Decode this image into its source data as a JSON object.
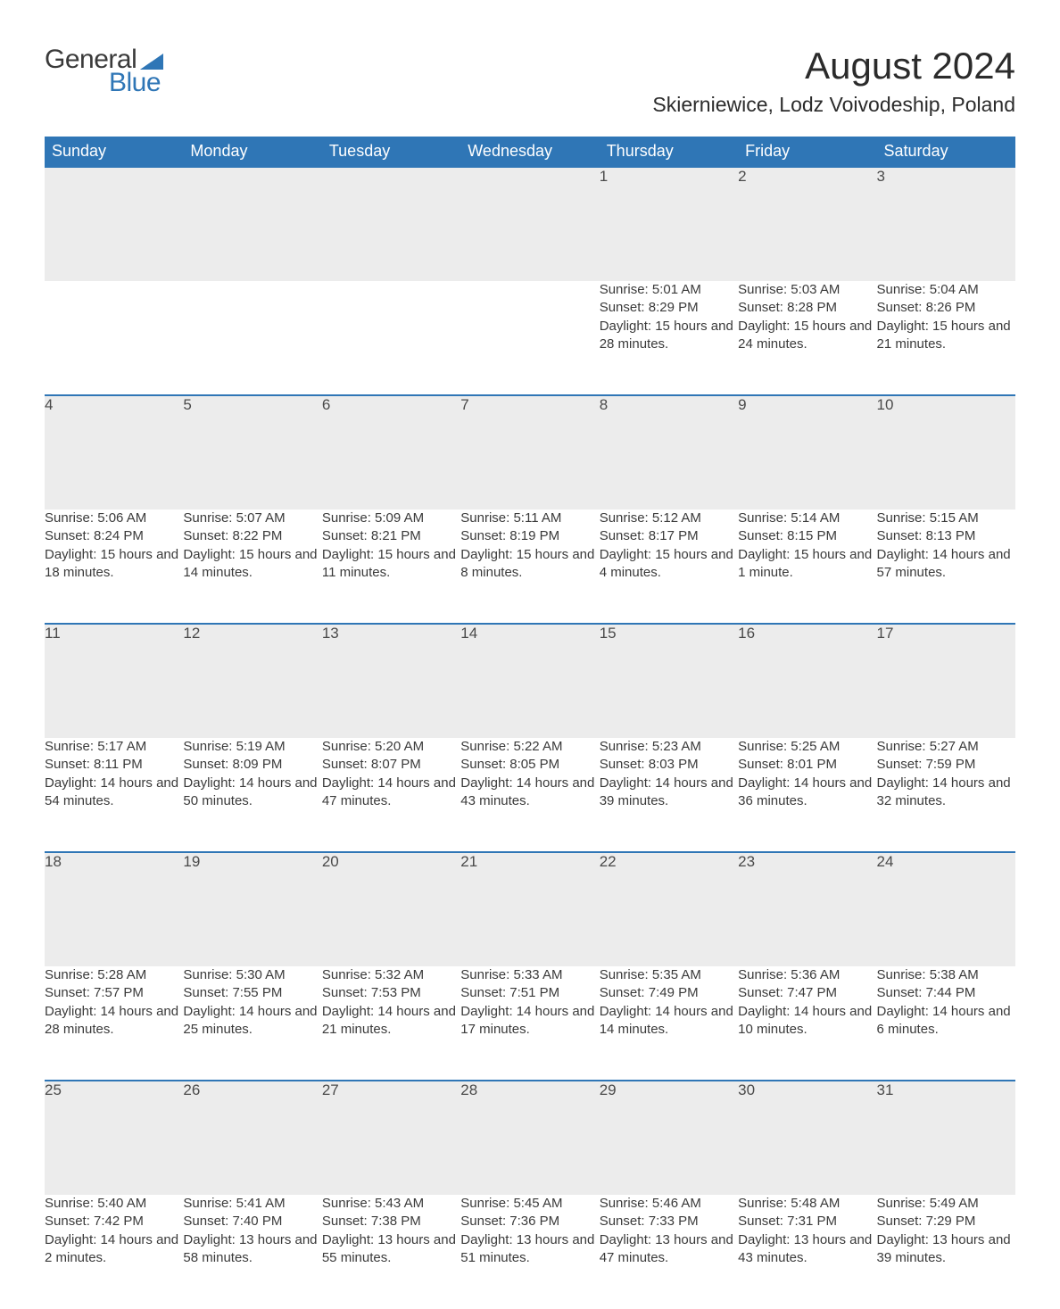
{
  "brand": {
    "word1": "General",
    "word2": "Blue",
    "triangle_color": "#2f76b6"
  },
  "title": "August 2024",
  "location": "Skierniewice, Lodz Voivodeship, Poland",
  "colors": {
    "header_bg": "#2f76b6",
    "header_text": "#ffffff",
    "daynum_bg": "#ececec",
    "rule": "#2f76b6",
    "body_text": "#3a3a3a",
    "page_bg": "#ffffff"
  },
  "day_headers": [
    "Sunday",
    "Monday",
    "Tuesday",
    "Wednesday",
    "Thursday",
    "Friday",
    "Saturday"
  ],
  "weeks": [
    [
      null,
      null,
      null,
      null,
      {
        "n": "1",
        "sunrise": "5:01 AM",
        "sunset": "8:29 PM",
        "daylight": "15 hours and 28 minutes."
      },
      {
        "n": "2",
        "sunrise": "5:03 AM",
        "sunset": "8:28 PM",
        "daylight": "15 hours and 24 minutes."
      },
      {
        "n": "3",
        "sunrise": "5:04 AM",
        "sunset": "8:26 PM",
        "daylight": "15 hours and 21 minutes."
      }
    ],
    [
      {
        "n": "4",
        "sunrise": "5:06 AM",
        "sunset": "8:24 PM",
        "daylight": "15 hours and 18 minutes."
      },
      {
        "n": "5",
        "sunrise": "5:07 AM",
        "sunset": "8:22 PM",
        "daylight": "15 hours and 14 minutes."
      },
      {
        "n": "6",
        "sunrise": "5:09 AM",
        "sunset": "8:21 PM",
        "daylight": "15 hours and 11 minutes."
      },
      {
        "n": "7",
        "sunrise": "5:11 AM",
        "sunset": "8:19 PM",
        "daylight": "15 hours and 8 minutes."
      },
      {
        "n": "8",
        "sunrise": "5:12 AM",
        "sunset": "8:17 PM",
        "daylight": "15 hours and 4 minutes."
      },
      {
        "n": "9",
        "sunrise": "5:14 AM",
        "sunset": "8:15 PM",
        "daylight": "15 hours and 1 minute."
      },
      {
        "n": "10",
        "sunrise": "5:15 AM",
        "sunset": "8:13 PM",
        "daylight": "14 hours and 57 minutes."
      }
    ],
    [
      {
        "n": "11",
        "sunrise": "5:17 AM",
        "sunset": "8:11 PM",
        "daylight": "14 hours and 54 minutes."
      },
      {
        "n": "12",
        "sunrise": "5:19 AM",
        "sunset": "8:09 PM",
        "daylight": "14 hours and 50 minutes."
      },
      {
        "n": "13",
        "sunrise": "5:20 AM",
        "sunset": "8:07 PM",
        "daylight": "14 hours and 47 minutes."
      },
      {
        "n": "14",
        "sunrise": "5:22 AM",
        "sunset": "8:05 PM",
        "daylight": "14 hours and 43 minutes."
      },
      {
        "n": "15",
        "sunrise": "5:23 AM",
        "sunset": "8:03 PM",
        "daylight": "14 hours and 39 minutes."
      },
      {
        "n": "16",
        "sunrise": "5:25 AM",
        "sunset": "8:01 PM",
        "daylight": "14 hours and 36 minutes."
      },
      {
        "n": "17",
        "sunrise": "5:27 AM",
        "sunset": "7:59 PM",
        "daylight": "14 hours and 32 minutes."
      }
    ],
    [
      {
        "n": "18",
        "sunrise": "5:28 AM",
        "sunset": "7:57 PM",
        "daylight": "14 hours and 28 minutes."
      },
      {
        "n": "19",
        "sunrise": "5:30 AM",
        "sunset": "7:55 PM",
        "daylight": "14 hours and 25 minutes."
      },
      {
        "n": "20",
        "sunrise": "5:32 AM",
        "sunset": "7:53 PM",
        "daylight": "14 hours and 21 minutes."
      },
      {
        "n": "21",
        "sunrise": "5:33 AM",
        "sunset": "7:51 PM",
        "daylight": "14 hours and 17 minutes."
      },
      {
        "n": "22",
        "sunrise": "5:35 AM",
        "sunset": "7:49 PM",
        "daylight": "14 hours and 14 minutes."
      },
      {
        "n": "23",
        "sunrise": "5:36 AM",
        "sunset": "7:47 PM",
        "daylight": "14 hours and 10 minutes."
      },
      {
        "n": "24",
        "sunrise": "5:38 AM",
        "sunset": "7:44 PM",
        "daylight": "14 hours and 6 minutes."
      }
    ],
    [
      {
        "n": "25",
        "sunrise": "5:40 AM",
        "sunset": "7:42 PM",
        "daylight": "14 hours and 2 minutes."
      },
      {
        "n": "26",
        "sunrise": "5:41 AM",
        "sunset": "7:40 PM",
        "daylight": "13 hours and 58 minutes."
      },
      {
        "n": "27",
        "sunrise": "5:43 AM",
        "sunset": "7:38 PM",
        "daylight": "13 hours and 55 minutes."
      },
      {
        "n": "28",
        "sunrise": "5:45 AM",
        "sunset": "7:36 PM",
        "daylight": "13 hours and 51 minutes."
      },
      {
        "n": "29",
        "sunrise": "5:46 AM",
        "sunset": "7:33 PM",
        "daylight": "13 hours and 47 minutes."
      },
      {
        "n": "30",
        "sunrise": "5:48 AM",
        "sunset": "7:31 PM",
        "daylight": "13 hours and 43 minutes."
      },
      {
        "n": "31",
        "sunrise": "5:49 AM",
        "sunset": "7:29 PM",
        "daylight": "13 hours and 39 minutes."
      }
    ]
  ],
  "labels": {
    "sunrise": "Sunrise: ",
    "sunset": "Sunset: ",
    "daylight": "Daylight: "
  }
}
